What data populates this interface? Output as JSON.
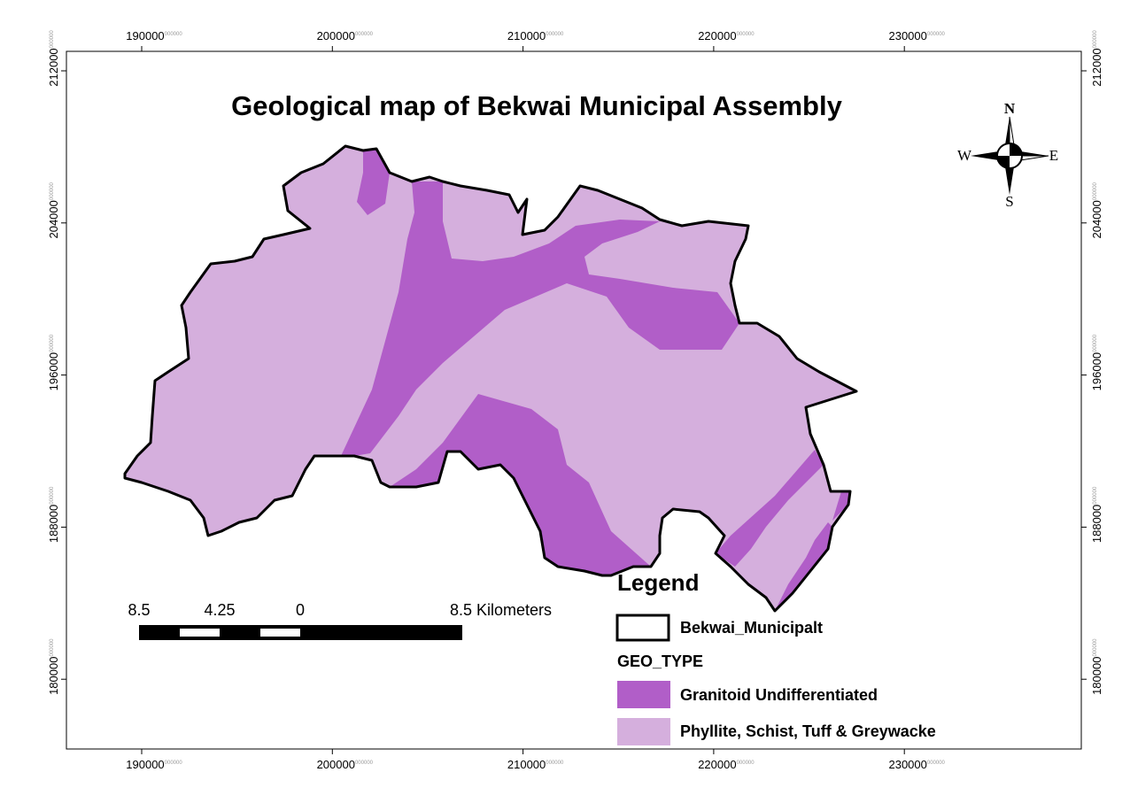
{
  "title": "Geological map of Bekwai Municipal Assembly",
  "x_ticks": [
    {
      "label": "190000",
      "sup": "000000"
    },
    {
      "label": "200000",
      "sup": "000000"
    },
    {
      "label": "210000",
      "sup": "000000"
    },
    {
      "label": "220000",
      "sup": "000000"
    },
    {
      "label": "230000",
      "sup": "000000"
    }
  ],
  "y_ticks": [
    {
      "label": "212000",
      "sup": "000000"
    },
    {
      "label": "204000",
      "sup": "000000"
    },
    {
      "label": "196000",
      "sup": "000000"
    },
    {
      "label": "188000",
      "sup": "000000"
    },
    {
      "label": "180000",
      "sup": "000000"
    }
  ],
  "compass": {
    "n": "N",
    "e": "E",
    "s": "S",
    "w": "W"
  },
  "scale_bar": {
    "labels": [
      "8.5",
      "4.25",
      "0",
      "8.5 Kilometers"
    ]
  },
  "legend": {
    "title": "Legend",
    "boundary": "Bekwai_Municipalt",
    "field": "GEO_TYPE",
    "classes": [
      {
        "label": "Granitoid Undifferentiated",
        "color": "#b15ec8"
      },
      {
        "label": "Phyllite, Schist, Tuff & Greywacke",
        "color": "#d5afdd"
      }
    ]
  }
}
